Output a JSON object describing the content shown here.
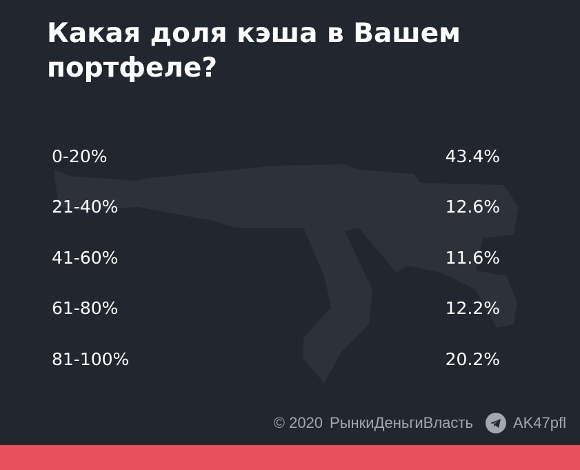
{
  "title": "Какая доля кэша в Вашем портфеле?",
  "rows": [
    [
      "0-20%",
      "43.4%"
    ],
    [
      "21-40%",
      "12.6%"
    ],
    [
      "41-60%",
      "11.6%"
    ],
    [
      "61-80%",
      "12.2%"
    ],
    [
      "81-100%",
      "20.2%"
    ]
  ],
  "footer": {
    "year": "© 2020",
    "brand": "РынкиДеньгиВласть",
    "handle": "AK47pfl"
  }
}
